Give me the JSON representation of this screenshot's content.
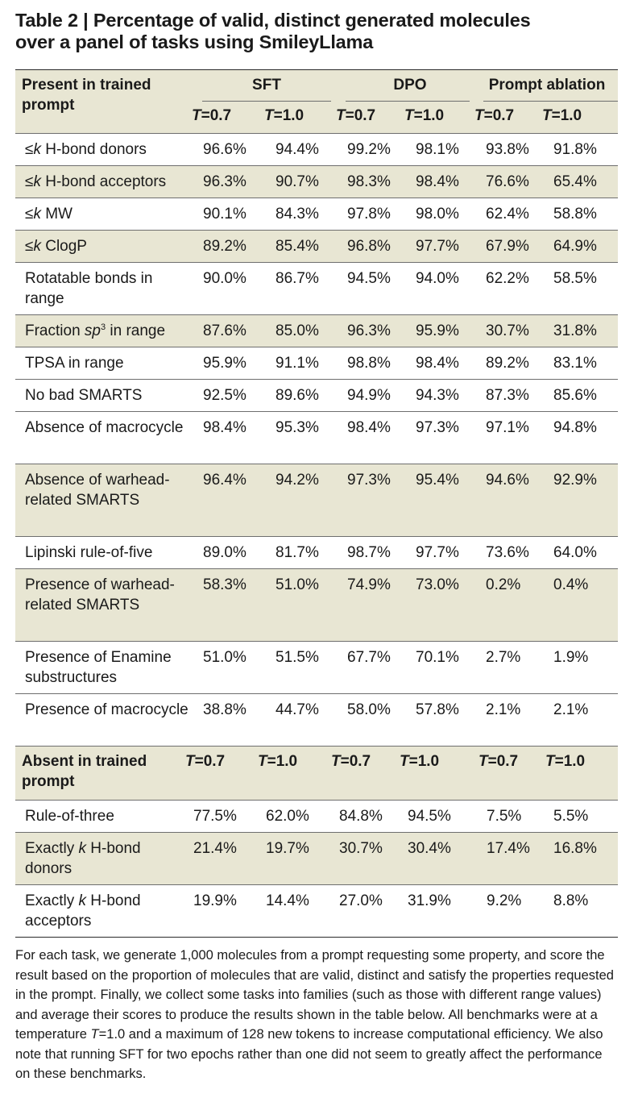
{
  "title_line1": "Table 2 | Percentage of valid, distinct generated molecules",
  "title_line2": "over a panel of tasks using SmileyLlama",
  "header": {
    "present_label": "Present in trained prompt",
    "groups": [
      "SFT",
      "DPO",
      "Prompt ablation"
    ],
    "temp_prefix": "T",
    "temps": [
      "=0.7",
      "=1.0",
      "=0.7",
      "=1.0",
      "=0.7",
      "=1.0"
    ],
    "absent_label": "Absent in trained prompt"
  },
  "present_rows": [
    {
      "label_pre": "≤",
      "label_ital": "k",
      "label_post": " H-bond donors",
      "values": [
        "96.6%",
        "94.4%",
        "99.2%",
        "98.1%",
        "93.8%",
        "91.8%"
      ]
    },
    {
      "label_pre": "≤",
      "label_ital": "k",
      "label_post": " H-bond acceptors",
      "values": [
        "96.3%",
        "90.7%",
        "98.3%",
        "98.4%",
        "76.6%",
        "65.4%"
      ]
    },
    {
      "label_pre": "≤",
      "label_ital": "k",
      "label_post": " MW",
      "values": [
        "90.1%",
        "84.3%",
        "97.8%",
        "98.0%",
        "62.4%",
        "58.8%"
      ]
    },
    {
      "label_pre": "≤",
      "label_ital": "k",
      "label_post": " ClogP",
      "values": [
        "89.2%",
        "85.4%",
        "96.8%",
        "97.7%",
        "67.9%",
        "64.9%"
      ]
    },
    {
      "label_pre": "Rotatable bonds in range",
      "label_ital": "",
      "label_post": "",
      "values": [
        "90.0%",
        "86.7%",
        "94.5%",
        "94.0%",
        "62.2%",
        "58.5%"
      ]
    },
    {
      "label_pre": "Fraction ",
      "label_ital": "sp",
      "label_sup": "3",
      "label_post": " in range",
      "values": [
        "87.6%",
        "85.0%",
        "96.3%",
        "95.9%",
        "30.7%",
        "31.8%"
      ]
    },
    {
      "label_pre": "TPSA in range",
      "label_ital": "",
      "label_post": "",
      "values": [
        "95.9%",
        "91.1%",
        "98.8%",
        "98.4%",
        "89.2%",
        "83.1%"
      ]
    },
    {
      "label_pre": "No bad SMARTS",
      "label_ital": "",
      "label_post": "",
      "values": [
        "92.5%",
        "89.6%",
        "94.9%",
        "94.3%",
        "87.3%",
        "85.6%"
      ]
    },
    {
      "label_pre": "Absence of macrocycle",
      "label_ital": "",
      "label_post": "",
      "values": [
        "98.4%",
        "95.3%",
        "98.4%",
        "97.3%",
        "97.1%",
        "94.8%"
      ]
    },
    {
      "label_pre": "Absence of warhead-related SMARTS",
      "label_ital": "",
      "label_post": "",
      "values": [
        "96.4%",
        "94.2%",
        "97.3%",
        "95.4%",
        "94.6%",
        "92.9%"
      ]
    },
    {
      "label_pre": "Lipinski rule-of-five",
      "label_ital": "",
      "label_post": "",
      "values": [
        "89.0%",
        "81.7%",
        "98.7%",
        "97.7%",
        "73.6%",
        "64.0%"
      ]
    },
    {
      "label_pre": "Presence of warhead-related SMARTS",
      "label_ital": "",
      "label_post": "",
      "values": [
        "58.3%",
        "51.0%",
        "74.9%",
        "73.0%",
        "0.2%",
        "0.4%"
      ]
    },
    {
      "label_pre": "Presence of Enamine substructures",
      "label_ital": "",
      "label_post": "",
      "values": [
        "51.0%",
        "51.5%",
        "67.7%",
        "70.1%",
        "2.7%",
        "1.9%"
      ]
    },
    {
      "label_pre": "Presence of macrocycle",
      "label_ital": "",
      "label_post": "",
      "values": [
        "38.8%",
        "44.7%",
        "58.0%",
        "57.8%",
        "2.1%",
        "2.1%"
      ]
    }
  ],
  "absent_rows": [
    {
      "label_pre": "Rule-of-three",
      "label_ital": "",
      "label_post": "",
      "values": [
        "77.5%",
        "62.0%",
        "84.8%",
        "94.5%",
        "7.5%",
        "5.5%"
      ]
    },
    {
      "label_pre": "Exactly ",
      "label_ital": "k",
      "label_post": " H-bond donors",
      "values": [
        "21.4%",
        "19.7%",
        "30.7%",
        "30.4%",
        "17.4%",
        "16.8%"
      ]
    },
    {
      "label_pre": "Exactly ",
      "label_ital": "k",
      "label_post": " H-bond acceptors",
      "values": [
        "19.9%",
        "14.4%",
        "27.0%",
        "31.9%",
        "9.2%",
        "8.8%"
      ]
    }
  ],
  "footnote_a": "For each task, we generate 1,000 molecules from a prompt requesting some property, and score the result based on the proportion of molecules that are valid, distinct and satisfy the properties requested in the prompt. Finally, we collect some tasks into families (such as those with different range values) and average their scores to produce the results shown in the table below. All benchmarks were at a temperature ",
  "footnote_var": "T",
  "footnote_b": "=1.0 and a maximum of 128 new tokens to increase computational efficiency. We also note that running SFT for two epochs rather than one did not seem to greatly affect the performance on these benchmarks.",
  "colors": {
    "shade": "#e8e6d3",
    "rule": "#6e6e6e",
    "text": "#1a1a1a"
  }
}
